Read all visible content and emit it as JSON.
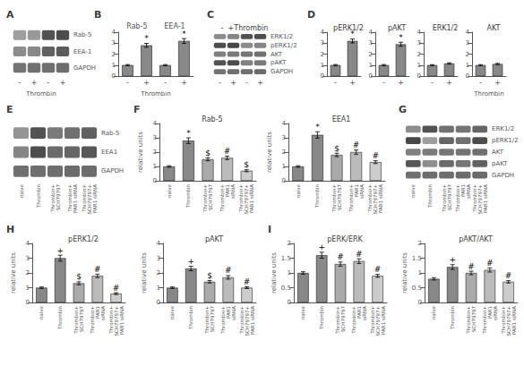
{
  "chart_data": [
    {
      "type": "heatmap",
      "panel": "A",
      "xlabel": "Thrombin",
      "categories": [
        "-",
        "+",
        "-",
        "+"
      ],
      "rows": [
        "Rab-5",
        "EEA-1",
        "GAPDH"
      ],
      "cells": [
        [
          0.62,
          0.6,
          0.32,
          0.3
        ],
        [
          0.55,
          0.53,
          0.38,
          0.36
        ],
        [
          0.45,
          0.44,
          0.44,
          0.43
        ]
      ]
    },
    {
      "type": "bar",
      "panel": "B",
      "group_labels": [
        "Rab-5",
        "EEA-1"
      ],
      "xlabel": "Thrombin",
      "categories": [
        "-",
        "+",
        "-",
        "+"
      ],
      "values": [
        1.0,
        2.8,
        1.0,
        3.2
      ],
      "errors": [
        0.05,
        0.18,
        0.05,
        0.22
      ],
      "bar_marks": [
        null,
        "*",
        null,
        "*"
      ],
      "color": "#888888",
      "ylim": [
        0,
        4
      ],
      "yticks": [
        0,
        1,
        2,
        3,
        4
      ],
      "grid": false
    },
    {
      "type": "heatmap",
      "panel": "C",
      "title": "-  +Thrombin",
      "categories": [
        "-",
        "+",
        "-",
        "+"
      ],
      "rows": [
        "ERK1/2",
        "pERK1/2",
        "AKT",
        "pAKT",
        "GAPDH"
      ],
      "cells": [
        [
          0.55,
          0.52,
          0.32,
          0.3
        ],
        [
          0.3,
          0.28,
          0.55,
          0.52
        ],
        [
          0.5,
          0.48,
          0.46,
          0.44
        ],
        [
          0.32,
          0.3,
          0.5,
          0.48
        ],
        [
          0.45,
          0.44,
          0.43,
          0.42
        ]
      ]
    },
    {
      "type": "bar",
      "panel": "D",
      "title": "pERK1/2",
      "categories": [
        "-",
        "+"
      ],
      "values": [
        1.0,
        3.2
      ],
      "errors": [
        0.05,
        0.18
      ],
      "bar_marks": [
        null,
        "*"
      ],
      "color": "#888888",
      "ylim": [
        0,
        4
      ],
      "yticks": [
        0,
        1,
        2,
        3,
        4
      ],
      "grid": false
    },
    {
      "type": "bar",
      "title": "pAKT",
      "categories": [
        "-",
        "+"
      ],
      "values": [
        1.0,
        2.9
      ],
      "errors": [
        0.05,
        0.18
      ],
      "bar_marks": [
        null,
        "*"
      ],
      "color": "#888888",
      "ylim": [
        0,
        4
      ],
      "yticks": [
        0,
        1,
        2,
        3,
        4
      ],
      "grid": false
    },
    {
      "type": "bar",
      "title": "ERK1/2",
      "categories": [
        "-",
        "+"
      ],
      "values": [
        1.0,
        1.15
      ],
      "errors": [
        0.04,
        0.06
      ],
      "color": "#888888",
      "ylim": [
        0,
        4
      ],
      "yticks": [
        0,
        1,
        2,
        3,
        4
      ],
      "grid": false
    },
    {
      "type": "bar",
      "title": "AKT",
      "xlabel": "Thrombin",
      "categories": [
        "-",
        "+"
      ],
      "values": [
        1.0,
        1.1
      ],
      "errors": [
        0.04,
        0.06
      ],
      "color": "#888888",
      "ylim": [
        0,
        4
      ],
      "yticks": [
        0,
        1,
        2,
        3,
        4
      ],
      "grid": false
    },
    {
      "type": "heatmap",
      "panel": "E",
      "categories": [
        "naive",
        "Thrombin",
        "Thrombin+\nSCH79797",
        "Thrombin+\nPAR1 siRNA",
        "Thrombin+\nSCH79797+\nPAR1 siRNA"
      ],
      "rows": [
        "Rab-5",
        "EEA1",
        "GAPDH"
      ],
      "cells": [
        [
          0.58,
          0.32,
          0.48,
          0.44,
          0.38
        ],
        [
          0.52,
          0.3,
          0.42,
          0.4,
          0.34
        ],
        [
          0.44,
          0.43,
          0.43,
          0.42,
          0.42
        ]
      ]
    },
    {
      "type": "bar",
      "panel": "F",
      "title": "Rab-5",
      "ylabel": "relative units",
      "categories": [
        "naive",
        "Thrombin",
        "Thrombin+\nSCH79797",
        "Thrombin+\nPAR1\nsiRNA",
        "Thrombin+\nSCH79797+\nPAR1 siRNA"
      ],
      "values": [
        1.0,
        2.8,
        1.5,
        1.6,
        0.7
      ],
      "errors": [
        0.05,
        0.2,
        0.1,
        0.12,
        0.07
      ],
      "bar_marks": [
        null,
        "*",
        "$",
        "#",
        "$"
      ],
      "colors": [
        "#888888",
        "#888888",
        "#aaaaaa",
        "#bbbbbb",
        "#cccccc"
      ],
      "ylim": [
        0,
        4
      ],
      "yticks": [
        0,
        1,
        2,
        3,
        4
      ],
      "grid": false
    },
    {
      "type": "bar",
      "title": "EEA1",
      "ylabel": "relative units",
      "categories": [
        "naive",
        "Thrombin",
        "Thrombin+\nSCH79797",
        "Thrombin+\nPAR1\nsiRNA",
        "Thrombin+\nSCH79797+\nPAR1 siRNA"
      ],
      "values": [
        1.0,
        3.2,
        1.8,
        2.0,
        1.3
      ],
      "errors": [
        0.05,
        0.22,
        0.12,
        0.15,
        0.1
      ],
      "bar_marks": [
        null,
        "*",
        "$",
        "#",
        "#"
      ],
      "colors": [
        "#888888",
        "#888888",
        "#aaaaaa",
        "#bbbbbb",
        "#cccccc"
      ],
      "ylim": [
        0,
        4
      ],
      "yticks": [
        0,
        1,
        2,
        3,
        4
      ],
      "grid": false
    },
    {
      "type": "heatmap",
      "panel": "G",
      "categories": [
        "naive",
        "Thrombin",
        "Thrombin+\nSCH79797",
        "Thrombin+\nPAR1\nsiRNA",
        "Thrombin+\nSCH79797+\nPAR1 siRNA"
      ],
      "rows": [
        "ERK1/2",
        "pERK1/2",
        "AKT",
        "pAKT",
        "GAPDH"
      ],
      "cells": [
        [
          0.55,
          0.32,
          0.44,
          0.46,
          0.4
        ],
        [
          0.28,
          0.62,
          0.4,
          0.44,
          0.3
        ],
        [
          0.5,
          0.48,
          0.46,
          0.45,
          0.44
        ],
        [
          0.34,
          0.56,
          0.42,
          0.46,
          0.38
        ],
        [
          0.44,
          0.43,
          0.43,
          0.42,
          0.42
        ]
      ]
    },
    {
      "type": "bar",
      "panel": "H",
      "title": "pERK1/2",
      "ylabel": "relative units",
      "categories": [
        "naive",
        "Thrombin",
        "Thrombin+\nSCH79797",
        "Thrombin+\nPAR1\nsiRNA",
        "Thrombin+\nSCH79797+\nPAR1 siRNA"
      ],
      "values": [
        1.0,
        3.0,
        1.3,
        1.8,
        0.6
      ],
      "errors": [
        0.05,
        0.2,
        0.1,
        0.12,
        0.06
      ],
      "bar_marks": [
        null,
        "+",
        "$",
        "#",
        "#"
      ],
      "colors": [
        "#888888",
        "#888888",
        "#aaaaaa",
        "#bbbbbb",
        "#cccccc"
      ],
      "ylim": [
        0,
        4
      ],
      "yticks": [
        0,
        1,
        2,
        3,
        4
      ],
      "grid": false
    },
    {
      "type": "bar",
      "title": "pAKT",
      "ylabel": "relative units",
      "categories": [
        "naive",
        "Thrombin",
        "Thrombin+\nSCH79797",
        "Thrombin+\nPAR1\nsiRNA",
        "Thrombin+\nSCH79797+\nPAR1 siRNA"
      ],
      "values": [
        1.0,
        2.3,
        1.4,
        1.7,
        1.0
      ],
      "errors": [
        0.05,
        0.15,
        0.08,
        0.12,
        0.06
      ],
      "bar_marks": [
        null,
        "+",
        "$",
        "#",
        "#"
      ],
      "colors": [
        "#888888",
        "#888888",
        "#aaaaaa",
        "#bbbbbb",
        "#cccccc"
      ],
      "ylim": [
        0,
        4
      ],
      "yticks": [
        0,
        1,
        2,
        3,
        4
      ],
      "grid": false
    },
    {
      "type": "bar",
      "panel": "I",
      "title": "pERK/ERK",
      "ylabel": "relative units",
      "categories": [
        "naive",
        "Thrombin",
        "Thrombin+\nSCH79797",
        "Thrombin+\nPAR1\nsiRNA",
        "Thrombin+\nSCH79797+\nPAR1 siRNA"
      ],
      "values": [
        1.0,
        1.6,
        1.3,
        1.4,
        0.9
      ],
      "errors": [
        0.04,
        0.1,
        0.07,
        0.08,
        0.05
      ],
      "bar_marks": [
        null,
        "+",
        "#",
        "#",
        "#"
      ],
      "colors": [
        "#888888",
        "#888888",
        "#aaaaaa",
        "#bbbbbb",
        "#cccccc"
      ],
      "ylim": [
        0,
        2
      ],
      "yticks": [
        0,
        0.5,
        1,
        1.5,
        2
      ],
      "grid": false
    },
    {
      "type": "bar",
      "title": "pAKT/AKT",
      "ylabel": "relative units",
      "categories": [
        "naive",
        "Thrombin",
        "Thrombin+\nSCH79797",
        "Thrombin+\nPAR1\nsiRNA",
        "Thrombin+\nSCH79797+\nPAR1 siRNA"
      ],
      "values": [
        0.8,
        1.2,
        1.0,
        1.1,
        0.7
      ],
      "errors": [
        0.04,
        0.08,
        0.06,
        0.07,
        0.04
      ],
      "bar_marks": [
        null,
        "+",
        "#",
        "#",
        "#"
      ],
      "colors": [
        "#888888",
        "#888888",
        "#aaaaaa",
        "#bbbbbb",
        "#cccccc"
      ],
      "ylim": [
        0,
        2
      ],
      "yticks": [
        0,
        0.5,
        1,
        1.5,
        2
      ],
      "grid": false
    }
  ]
}
